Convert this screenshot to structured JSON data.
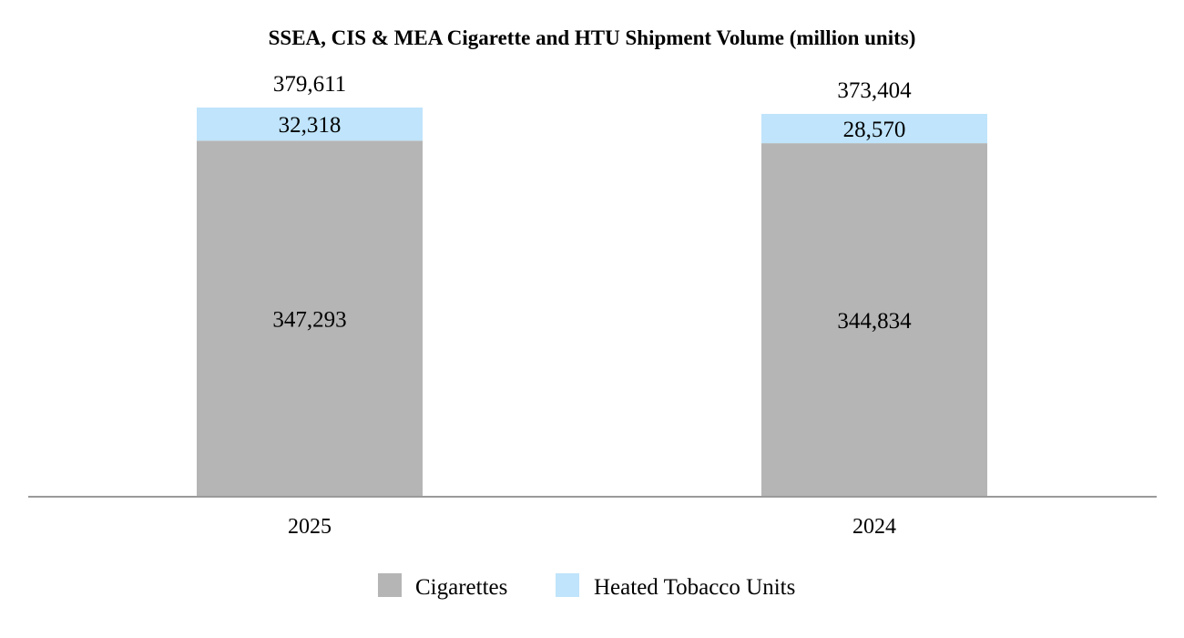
{
  "chart_data": {
    "type": "bar",
    "stacked": true,
    "title": "SSEA, CIS & MEA Cigarette and HTU Shipment Volume (million units)",
    "categories": [
      "2025",
      "2024"
    ],
    "series": [
      {
        "name": "Cigarettes",
        "values": [
          347293,
          344834
        ],
        "labels": [
          "347,293",
          "344,834"
        ],
        "color": "#b5b5b5"
      },
      {
        "name": "Heated Tobacco Units",
        "values": [
          32318,
          28570
        ],
        "labels": [
          "32,318",
          "28,570"
        ],
        "color": "#bfe4fb"
      }
    ],
    "totals": [
      379611,
      373404
    ],
    "total_labels": [
      "379,611",
      "373,404"
    ],
    "xlabel": "",
    "ylabel": "",
    "ylim": [
      0,
      379611
    ],
    "grid": false,
    "legend": "bottom-center"
  }
}
